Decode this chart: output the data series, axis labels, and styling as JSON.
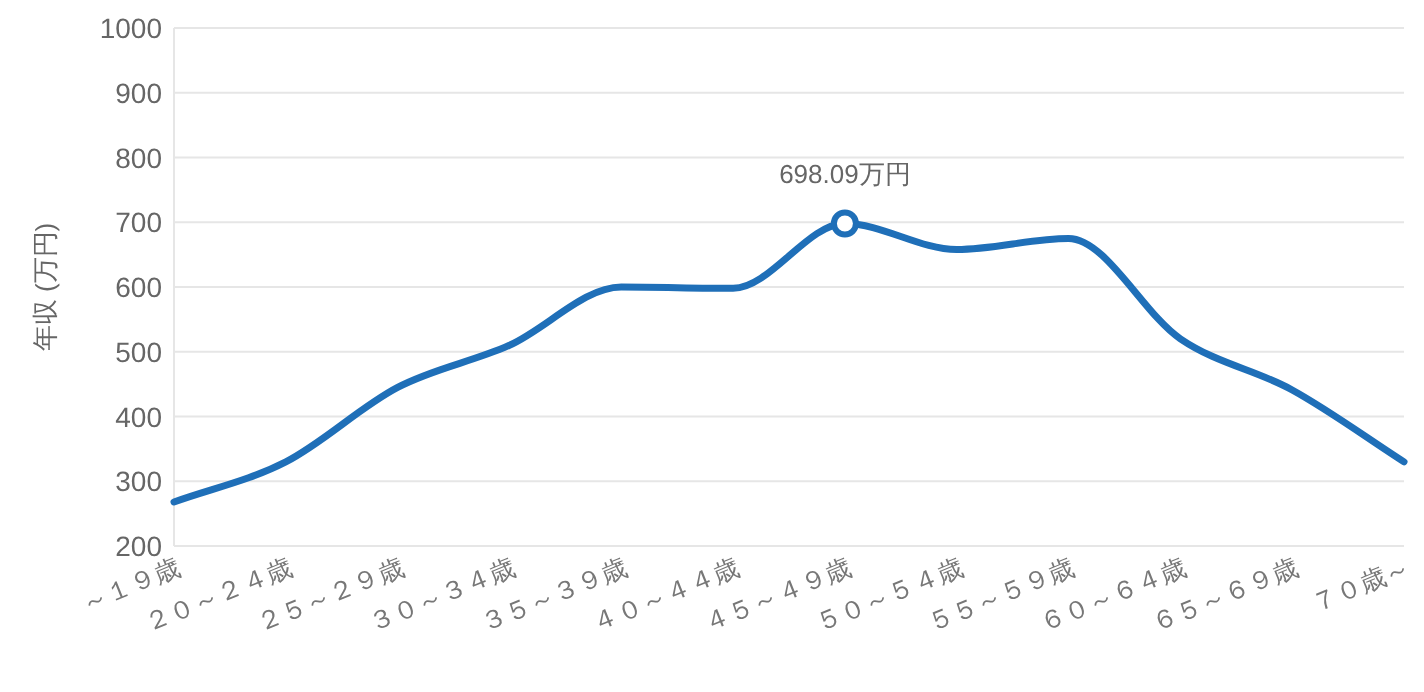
{
  "chart_data": {
    "type": "line",
    "ylabel": "年収 (万円)",
    "categories": [
      "～１９歳",
      "２０～２４歳",
      "２５～２９歳",
      "３０～３４歳",
      "３５～３９歳",
      "４０～４４歳",
      "４５～４９歳",
      "５０～５４歳",
      "５５～５９歳",
      "６０～６４歳",
      "６５～６９歳",
      "７０歳～"
    ],
    "series": [
      {
        "color": "#1f6fb8",
        "values": [
          268,
          330,
          445,
          510,
          600,
          598,
          698.09,
          658,
          675,
          520,
          441,
          330
        ]
      }
    ],
    "ylim": [
      200,
      1000
    ],
    "yticks": [
      200,
      300,
      400,
      500,
      600,
      700,
      800,
      900,
      1000
    ],
    "grid": "y",
    "marker": "none",
    "line_style": "solid",
    "annotations": [
      {
        "text": "698.09万円",
        "x": "４５～４９歳",
        "y": 698.09
      }
    ]
  }
}
